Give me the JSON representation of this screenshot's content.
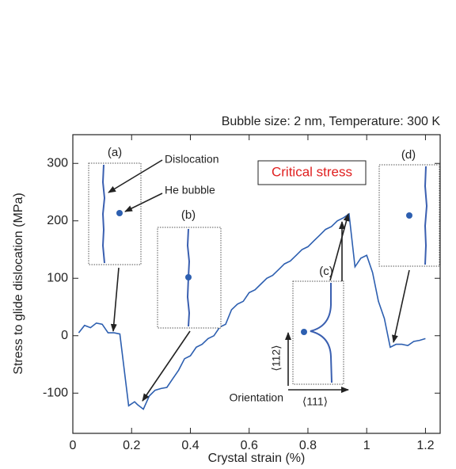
{
  "chart_data": {
    "type": "line",
    "subtitle": "Bubble size: 2 nm, Temperature: 300 K",
    "x_label": "Crystal strain (%)",
    "y_label": "Stress to glide dislocation (MPa)",
    "xlim": [
      0,
      1.25
    ],
    "ylim": [
      -170,
      350
    ],
    "xticks": [
      0,
      0.2,
      0.4,
      0.6,
      0.8,
      1,
      1.2
    ],
    "yticks": [
      -100,
      0,
      100,
      200,
      300
    ],
    "color": "#2d5fb0",
    "x": [
      0.02,
      0.04,
      0.06,
      0.08,
      0.1,
      0.12,
      0.14,
      0.16,
      0.19,
      0.21,
      0.22,
      0.24,
      0.26,
      0.28,
      0.3,
      0.32,
      0.34,
      0.36,
      0.38,
      0.4,
      0.42,
      0.44,
      0.46,
      0.48,
      0.5,
      0.52,
      0.54,
      0.56,
      0.58,
      0.6,
      0.62,
      0.64,
      0.66,
      0.68,
      0.7,
      0.72,
      0.74,
      0.76,
      0.78,
      0.8,
      0.82,
      0.84,
      0.86,
      0.88,
      0.9,
      0.92,
      0.94,
      0.96,
      0.98,
      1.0,
      1.02,
      1.04,
      1.06,
      1.08,
      1.1,
      1.12,
      1.14,
      1.16,
      1.18,
      1.2
    ],
    "values": [
      5,
      18,
      14,
      22,
      20,
      5,
      5,
      3,
      -122,
      -115,
      -120,
      -128,
      -105,
      -95,
      -92,
      -90,
      -75,
      -60,
      -40,
      -35,
      -20,
      -15,
      -5,
      0,
      15,
      20,
      45,
      55,
      60,
      75,
      80,
      90,
      100,
      105,
      115,
      125,
      130,
      140,
      150,
      155,
      165,
      175,
      185,
      190,
      200,
      205,
      212,
      120,
      135,
      140,
      110,
      60,
      30,
      -20,
      -15,
      -15,
      -17,
      -10,
      -8,
      -5
    ],
    "annotations": [
      "(a)",
      "(b)",
      "(c)",
      "(d)",
      "Dislocation",
      "He bubble",
      "Critical stress",
      "Orientation",
      "⟨112⟩",
      "⟨111⟩"
    ]
  }
}
